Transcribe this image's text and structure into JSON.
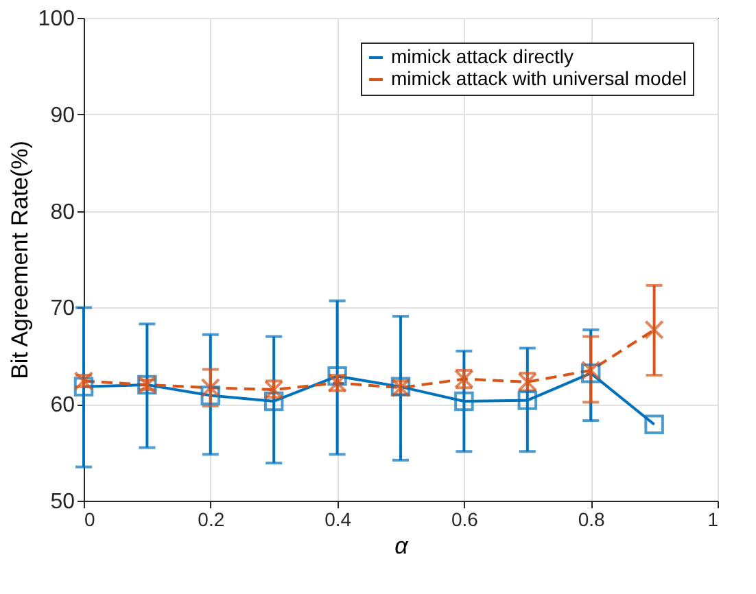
{
  "chart_data": {
    "type": "line",
    "xlabel": "α",
    "ylabel": "Bit Agreement Rate(%)",
    "x": [
      0,
      0.1,
      0.2,
      0.3,
      0.4,
      0.5,
      0.6,
      0.7,
      0.8,
      0.9
    ],
    "xlim": [
      0,
      1
    ],
    "xticks": [
      0,
      0.2,
      0.4,
      0.6,
      0.8,
      1
    ],
    "ylim": [
      50,
      100
    ],
    "yticks": [
      50,
      60,
      70,
      80,
      90,
      100
    ],
    "grid": true,
    "legend": "top right",
    "series": [
      {
        "name": "mimick attack directly",
        "color": "#0072bd",
        "marker": "square",
        "line_style": "solid",
        "values": [
          61.8,
          62.0,
          60.9,
          60.3,
          62.9,
          61.8,
          60.3,
          60.4,
          63.2,
          57.9
        ],
        "errors": [
          [
            53.5,
            70.0
          ],
          [
            55.5,
            68.3
          ],
          [
            54.8,
            67.2
          ],
          [
            53.9,
            67.0
          ],
          [
            54.8,
            70.7
          ],
          [
            54.2,
            69.1
          ],
          [
            55.1,
            65.5
          ],
          [
            55.1,
            65.8
          ],
          [
            58.3,
            67.7
          ],
          null
        ]
      },
      {
        "name": "mimick attack with universal model",
        "color": "#d95319",
        "marker": "cross",
        "line_style": "dashed",
        "values": [
          62.4,
          62.0,
          61.7,
          61.5,
          62.2,
          61.7,
          62.6,
          62.3,
          63.5,
          67.7
        ],
        "errors": [
          [
            61.8,
            63.0
          ],
          [
            61.5,
            62.5
          ],
          [
            59.8,
            63.6
          ],
          [
            60.7,
            62.4
          ],
          [
            61.4,
            63.0
          ],
          [
            61.0,
            62.4
          ],
          [
            61.7,
            63.5
          ],
          [
            61.4,
            63.2
          ],
          [
            60.2,
            67.0
          ],
          [
            63.0,
            72.3
          ]
        ]
      }
    ]
  }
}
